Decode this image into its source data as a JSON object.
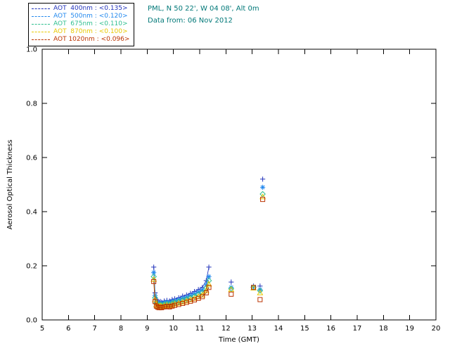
{
  "header": {
    "line1": "PML, N 50 22', W 04 08', Alt 0m",
    "line2": "Data from: 06 Nov 2012",
    "color": "#007878"
  },
  "chart_data": {
    "type": "scatter",
    "title": "",
    "xlabel": "Time (GMT)",
    "ylabel": "Aerosol Optical Thickness",
    "xlim": [
      5,
      20
    ],
    "ylim": [
      0,
      1.0
    ],
    "xticks": [
      5,
      6,
      7,
      8,
      9,
      10,
      11,
      12,
      13,
      14,
      15,
      16,
      17,
      18,
      19,
      20
    ],
    "yticks": [
      0.0,
      0.2,
      0.4,
      0.6,
      0.8,
      1.0
    ],
    "grid": false,
    "legend_position": "top-left",
    "axis_color": "#000000",
    "series": [
      {
        "name": "AOT 400nm",
        "legend_label": "AOT  400nm : <0.135>",
        "color": "#2233bb",
        "marker": "plus",
        "main_x": [
          9.25,
          9.3,
          9.35,
          9.4,
          9.45,
          9.5,
          9.55,
          9.65,
          9.75,
          9.85,
          9.95,
          10.05,
          10.2,
          10.35,
          10.5,
          10.65,
          10.8,
          10.95,
          11.1,
          11.25,
          11.35
        ],
        "main_y": [
          0.195,
          0.1,
          0.075,
          0.07,
          0.065,
          0.068,
          0.065,
          0.07,
          0.072,
          0.07,
          0.075,
          0.078,
          0.082,
          0.088,
          0.092,
          0.098,
          0.105,
          0.112,
          0.12,
          0.145,
          0.195
        ],
        "isolated_x": [
          12.2,
          13.05,
          13.3,
          13.4
        ],
        "isolated_y": [
          0.14,
          0.125,
          0.125,
          0.52
        ]
      },
      {
        "name": "AOT 500nm",
        "legend_label": "AOT  500nm : <0.120>",
        "color": "#2288ee",
        "marker": "asterisk",
        "main_x": [
          9.25,
          9.3,
          9.35,
          9.4,
          9.45,
          9.5,
          9.55,
          9.65,
          9.75,
          9.85,
          9.95,
          10.05,
          10.2,
          10.35,
          10.5,
          10.65,
          10.8,
          10.95,
          11.1,
          11.25,
          11.35
        ],
        "main_y": [
          0.175,
          0.09,
          0.068,
          0.063,
          0.06,
          0.062,
          0.06,
          0.064,
          0.066,
          0.064,
          0.068,
          0.071,
          0.075,
          0.08,
          0.084,
          0.09,
          0.096,
          0.103,
          0.11,
          0.13,
          0.16
        ],
        "isolated_x": [
          12.2,
          13.05,
          13.3,
          13.4
        ],
        "isolated_y": [
          0.12,
          0.122,
          0.112,
          0.49
        ]
      },
      {
        "name": "AOT 675nm",
        "legend_label": "AOT  675nm : <0.110>",
        "color": "#2fbf8f",
        "marker": "diamond",
        "main_x": [
          9.25,
          9.3,
          9.35,
          9.4,
          9.45,
          9.5,
          9.55,
          9.65,
          9.75,
          9.85,
          9.95,
          10.05,
          10.2,
          10.35,
          10.5,
          10.65,
          10.8,
          10.95,
          11.1,
          11.25,
          11.35
        ],
        "main_y": [
          0.16,
          0.082,
          0.062,
          0.057,
          0.055,
          0.057,
          0.055,
          0.058,
          0.06,
          0.058,
          0.062,
          0.065,
          0.068,
          0.073,
          0.077,
          0.082,
          0.087,
          0.094,
          0.1,
          0.118,
          0.145
        ],
        "isolated_x": [
          12.2,
          13.05,
          13.3,
          13.4
        ],
        "isolated_y": [
          0.115,
          0.12,
          0.108,
          0.465
        ]
      },
      {
        "name": "AOT 870nm",
        "legend_label": "AOT  870nm : <0.100>",
        "color": "#e8c800",
        "marker": "triangle",
        "main_x": [
          9.25,
          9.3,
          9.35,
          9.4,
          9.45,
          9.5,
          9.55,
          9.65,
          9.75,
          9.85,
          9.95,
          10.05,
          10.2,
          10.35,
          10.5,
          10.65,
          10.8,
          10.95,
          11.1,
          11.25,
          11.35
        ],
        "main_y": [
          0.15,
          0.075,
          0.056,
          0.052,
          0.05,
          0.052,
          0.05,
          0.053,
          0.055,
          0.053,
          0.056,
          0.059,
          0.062,
          0.066,
          0.07,
          0.075,
          0.08,
          0.086,
          0.092,
          0.108,
          0.132
        ],
        "isolated_x": [
          12.2,
          13.05,
          13.3,
          13.4
        ],
        "isolated_y": [
          0.112,
          0.118,
          0.1,
          0.455
        ]
      },
      {
        "name": "AOT 1020nm",
        "legend_label": "AOT 1020nm : <0.096>",
        "color": "#bb3300",
        "marker": "square",
        "main_x": [
          9.25,
          9.3,
          9.35,
          9.4,
          9.45,
          9.5,
          9.55,
          9.65,
          9.75,
          9.85,
          9.95,
          10.05,
          10.2,
          10.35,
          10.5,
          10.65,
          10.8,
          10.95,
          11.1,
          11.25,
          11.35
        ],
        "main_y": [
          0.142,
          0.068,
          0.051,
          0.047,
          0.045,
          0.047,
          0.045,
          0.048,
          0.05,
          0.048,
          0.051,
          0.054,
          0.057,
          0.061,
          0.065,
          0.069,
          0.074,
          0.08,
          0.086,
          0.1,
          0.12
        ],
        "isolated_x": [
          12.2,
          13.05,
          13.3,
          13.4
        ],
        "isolated_y": [
          0.095,
          0.12,
          0.075,
          0.445
        ]
      }
    ]
  }
}
